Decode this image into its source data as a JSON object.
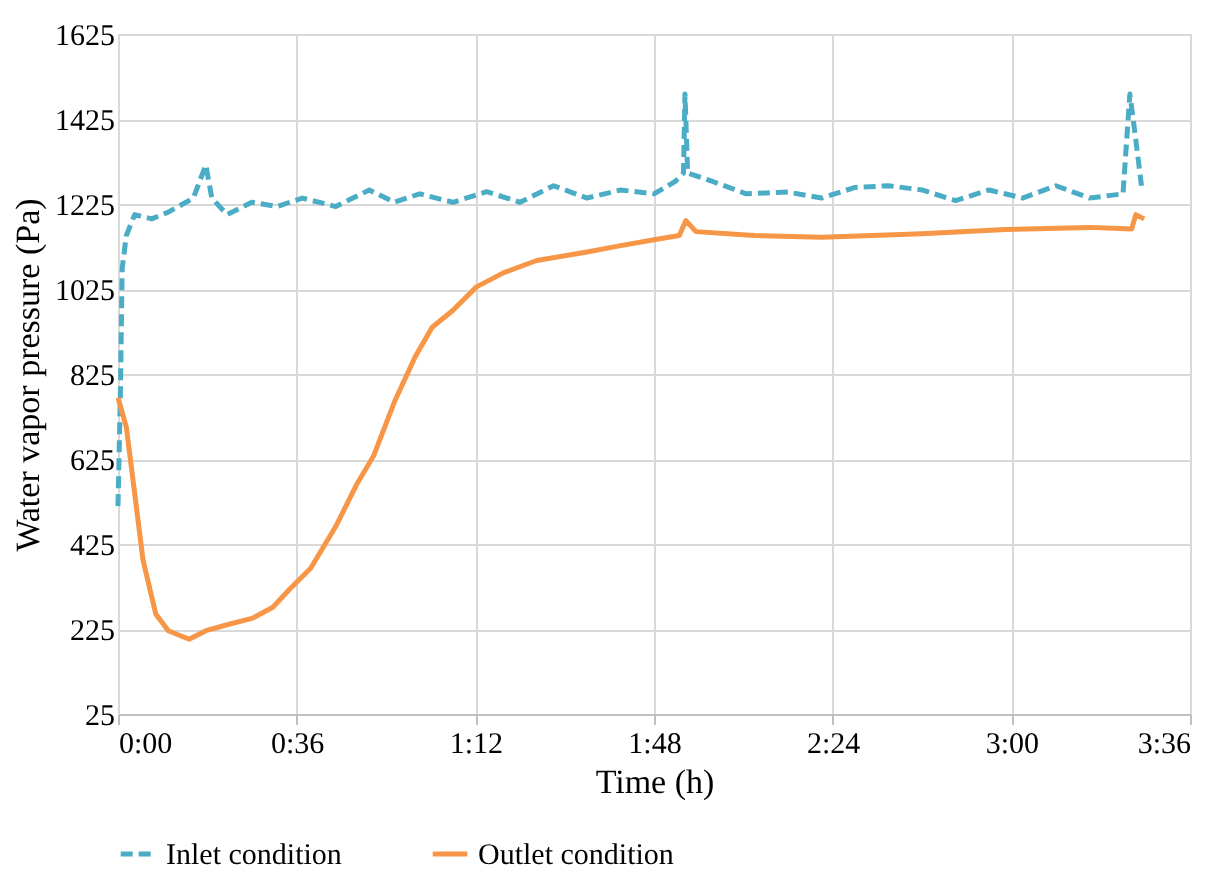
{
  "chart_data": {
    "type": "line",
    "xlabel": "Time (h)",
    "ylabel": "Water vapor pressure (Pa)",
    "xlim": [
      0,
      3.6
    ],
    "xticks": [
      {
        "value": 0,
        "label": "0:00"
      },
      {
        "value": 0.6,
        "label": "0:36"
      },
      {
        "value": 1.2,
        "label": "1:12"
      },
      {
        "value": 1.8,
        "label": "1:48"
      },
      {
        "value": 2.4,
        "label": "2:24"
      },
      {
        "value": 3.0,
        "label": "3:00"
      },
      {
        "value": 3.6,
        "label": "3:36"
      }
    ],
    "ylim": [
      25,
      1625
    ],
    "yticks": [
      25,
      225,
      425,
      625,
      825,
      1025,
      1225,
      1425,
      1625
    ],
    "grid": true,
    "legend": "bottom",
    "marker": "none",
    "series": [
      {
        "name": "Inlet condition",
        "color": "#4bacc6",
        "line_style": "dashed",
        "x": [
          0,
          0.008,
          0.014,
          0.028,
          0.056,
          0.113,
          0.169,
          0.253,
          0.295,
          0.315,
          0.366,
          0.45,
          0.534,
          0.619,
          0.731,
          0.844,
          0.928,
          1.013,
          1.125,
          1.238,
          1.35,
          1.463,
          1.575,
          1.688,
          1.8,
          1.871,
          1.899,
          1.904,
          1.913,
          1.997,
          2.11,
          2.25,
          2.363,
          2.475,
          2.588,
          2.7,
          2.813,
          2.925,
          3.038,
          3.15,
          3.263,
          3.375,
          3.398,
          3.418,
          3.437
        ],
        "values": [
          514,
          779,
          1073,
          1151,
          1200,
          1190,
          1206,
          1239,
          1317,
          1239,
          1200,
          1229,
          1219,
          1239,
          1219,
          1258,
          1229,
          1249,
          1229,
          1254,
          1229,
          1268,
          1239,
          1258,
          1249,
          1278,
          1298,
          1484,
          1298,
          1278,
          1249,
          1253,
          1239,
          1264,
          1268,
          1258,
          1233,
          1258,
          1239,
          1268,
          1239,
          1249,
          1484,
          1376,
          1268
        ]
      },
      {
        "name": "Outlet condition",
        "color": "#f79646",
        "line_style": "solid",
        "x": [
          0,
          0.028,
          0.056,
          0.084,
          0.127,
          0.169,
          0.239,
          0.295,
          0.366,
          0.45,
          0.52,
          0.577,
          0.647,
          0.731,
          0.8,
          0.858,
          0.928,
          0.999,
          1.055,
          1.125,
          1.204,
          1.294,
          1.406,
          1.575,
          1.688,
          1.8,
          1.885,
          1.907,
          1.941,
          2.138,
          2.363,
          2.7,
          2.98,
          3.263,
          3.404,
          3.418,
          3.446
        ],
        "values": [
          769,
          700,
          544,
          387,
          260,
          221,
          201,
          221,
          235,
          250,
          276,
          319,
          368,
          466,
          563,
          632,
          759,
          867,
          935,
          975,
          1030,
          1063,
          1092,
          1112,
          1127,
          1141,
          1151,
          1186,
          1160,
          1151,
          1147,
          1155,
          1165,
          1170,
          1166,
          1200,
          1190
        ]
      }
    ]
  }
}
